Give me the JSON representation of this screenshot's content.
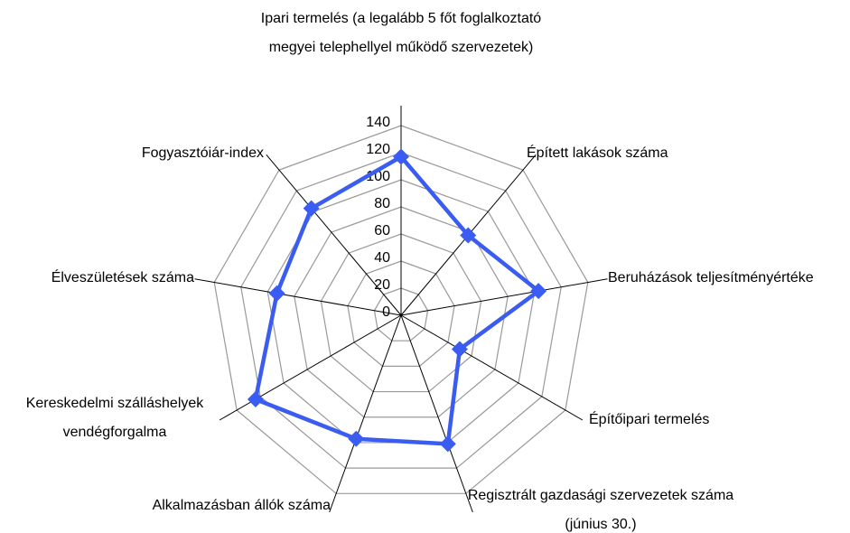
{
  "chart_data": {
    "type": "radar",
    "categories": [
      "Ipari termelés (a legalább 5 főt foglalkoztató megyei telephellyel működő szervezetek)",
      "Épített lakások száma",
      "Beruházások teljesítményértéke",
      "Építőipari termelés",
      "Regisztrált gazdasági szervezetek száma (június 30.)",
      "Alkalmazásban állók száma",
      "Kereskedelmi szálláshelyek vendégforgalma",
      "Élveszületések száma",
      "Fogyasztóiár-index"
    ],
    "values": [
      117,
      77,
      103,
      50,
      101,
      97,
      124,
      93,
      103
    ],
    "color": "#3b5cf0",
    "ylim": [
      0,
      140
    ],
    "yticks": [
      0,
      20,
      40,
      60,
      80,
      100,
      120,
      140
    ],
    "grid": true
  }
}
